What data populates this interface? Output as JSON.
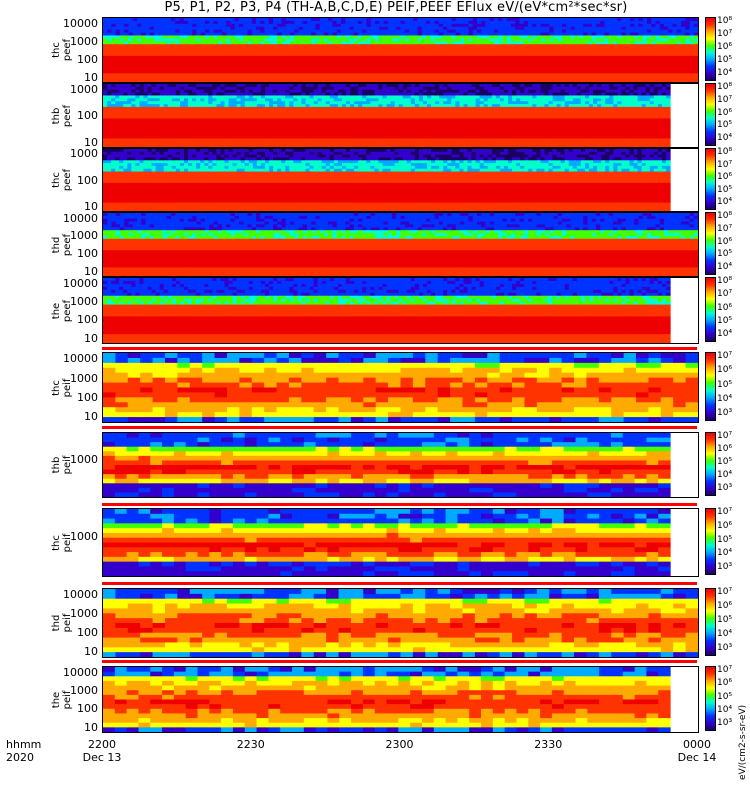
{
  "title": "P5, P1, P2, P3, P4 (TH-A,B,C,D,E) PEIF,PEEF EFlux eV/(eV*cm²*sec*sr)",
  "cbar_units": "eV/(cm2-s-sr-eV)",
  "chart_data": {
    "type": "heatmap",
    "xlabel": "hhmm 2020",
    "x_ticks": [
      {
        "label": "2200",
        "sub": "Dec 13"
      },
      {
        "label": "2230",
        "sub": ""
      },
      {
        "label": "2300",
        "sub": ""
      },
      {
        "label": "2330",
        "sub": ""
      },
      {
        "label": "0000",
        "sub": "Dec 14"
      }
    ],
    "x_range": [
      "2020-12-13 22:00",
      "2020-12-14 00:00"
    ],
    "y_scale": "log",
    "colormap": [
      "#1a0066",
      "#3300cc",
      "#0033ff",
      "#00aaff",
      "#00ffcc",
      "#44ff00",
      "#ffff00",
      "#ffaa00",
      "#ff3300",
      "#ee0000"
    ],
    "panels": [
      {
        "probe": "thc",
        "product": "peef",
        "label_line1": "thc",
        "label_line2": "peef",
        "y_ticks": [
          "10000",
          "1000",
          "100",
          "10"
        ],
        "cbar_ticks": [
          "10⁸",
          "10⁷",
          "10⁶",
          "10⁵",
          "10⁴"
        ],
        "end_fraction": 1.0,
        "high_band": "blue"
      },
      {
        "probe": "thb",
        "product": "peef",
        "label_line1": "thb",
        "label_line2": "peef",
        "y_ticks": [
          "1000",
          "100",
          "10"
        ],
        "cbar_ticks": [
          "10⁸",
          "10⁷",
          "10⁶",
          "10⁵",
          "10⁴"
        ],
        "end_fraction": 0.953,
        "high_band": "dark"
      },
      {
        "probe": "thc",
        "product": "peef",
        "label_line1": "thc",
        "label_line2": "peef",
        "y_ticks": [
          "1000",
          "100",
          "10"
        ],
        "cbar_ticks": [
          "10⁸",
          "10⁷",
          "10⁶",
          "10⁵",
          "10⁴"
        ],
        "end_fraction": 0.953,
        "high_band": "dark"
      },
      {
        "probe": "thd",
        "product": "peef",
        "label_line1": "thd",
        "label_line2": "peef",
        "y_ticks": [
          "10000",
          "1000",
          "100",
          "10"
        ],
        "cbar_ticks": [
          "10⁸",
          "10⁷",
          "10⁶",
          "10⁵",
          "10⁴"
        ],
        "end_fraction": 1.0,
        "high_band": "blue"
      },
      {
        "probe": "the",
        "product": "peef",
        "label_line1": "the",
        "label_line2": "peef",
        "y_ticks": [
          "10000",
          "1000",
          "100",
          "10"
        ],
        "cbar_ticks": [
          "10⁸",
          "10⁷",
          "10⁶",
          "10⁵",
          "10⁴"
        ],
        "end_fraction": 0.953,
        "high_band": "blue"
      },
      {
        "probe": "thc",
        "product": "peif",
        "label_line1": "thc",
        "label_line2": "peif",
        "y_ticks": [
          "10000",
          "1000",
          "100",
          "10"
        ],
        "cbar_ticks": [
          "10⁷",
          "10⁶",
          "10⁵",
          "10⁴",
          "10³"
        ],
        "end_fraction": 1.0,
        "high_band": "ion"
      },
      {
        "probe": "thb",
        "product": "peif",
        "label_line1": "thb",
        "label_line2": "peif",
        "y_ticks": [
          "1000"
        ],
        "cbar_ticks": [
          "10⁷",
          "10⁶",
          "10⁵",
          "10⁴",
          "10³"
        ],
        "end_fraction": 0.953,
        "high_band": "ion-b"
      },
      {
        "probe": "thc",
        "product": "peif",
        "label_line1": "thc",
        "label_line2": "peif",
        "y_ticks": [
          "1000"
        ],
        "cbar_ticks": [
          "10⁷",
          "10⁶",
          "10⁵",
          "10⁴",
          "10³"
        ],
        "end_fraction": 0.953,
        "high_band": "ion-b"
      },
      {
        "probe": "thd",
        "product": "peif",
        "label_line1": "thd",
        "label_line2": "peif",
        "y_ticks": [
          "10000",
          "1000",
          "100",
          "10"
        ],
        "cbar_ticks": [
          "10⁷",
          "10⁶",
          "10⁵",
          "10⁴",
          "10³"
        ],
        "end_fraction": 1.0,
        "high_band": "ion"
      },
      {
        "probe": "the",
        "product": "peif",
        "label_line1": "the",
        "label_line2": "peif",
        "y_ticks": [
          "10000",
          "1000",
          "100",
          "10"
        ],
        "cbar_ticks": [
          "10⁷",
          "10⁶",
          "10⁵",
          "10⁴",
          "10³"
        ],
        "end_fraction": 0.953,
        "high_band": "ion"
      }
    ]
  }
}
